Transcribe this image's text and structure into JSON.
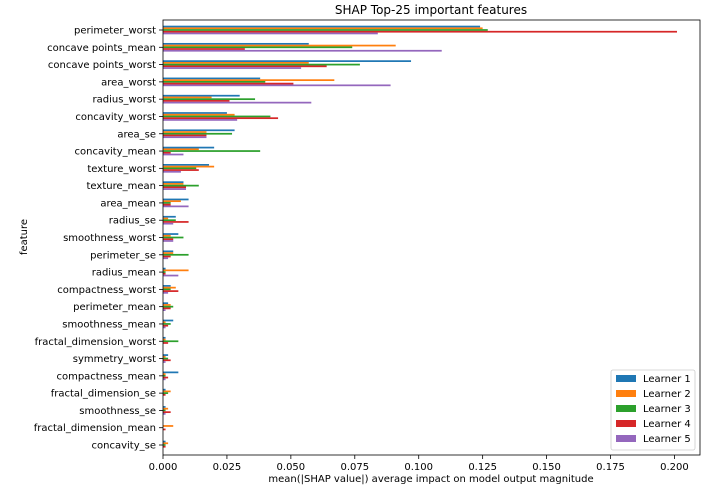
{
  "chart_data": {
    "type": "bar",
    "orientation": "horizontal",
    "title": "SHAP Top-25 important features",
    "xlabel": "mean(|SHAP value|) average impact on model output magnitude",
    "ylabel": "feature",
    "xlim": [
      0,
      0.21
    ],
    "xticks": [
      "0.000",
      "0.025",
      "0.050",
      "0.075",
      "0.100",
      "0.125",
      "0.150",
      "0.175",
      "0.200"
    ],
    "legend_position": "bottom-right",
    "grid": false,
    "categories": [
      "perimeter_worst",
      "concave points_mean",
      "concave points_worst",
      "area_worst",
      "radius_worst",
      "concavity_worst",
      "area_se",
      "concavity_mean",
      "texture_worst",
      "texture_mean",
      "area_mean",
      "radius_se",
      "smoothness_worst",
      "perimeter_se",
      "radius_mean",
      "compactness_worst",
      "perimeter_mean",
      "smoothness_mean",
      "fractal_dimension_worst",
      "symmetry_worst",
      "compactness_mean",
      "fractal_dimension_se",
      "smoothness_se",
      "fractal_dimension_mean",
      "concavity_se"
    ],
    "series": [
      {
        "name": "Learner 1",
        "color": "#1f77b4",
        "values": [
          0.124,
          0.057,
          0.097,
          0.038,
          0.03,
          0.025,
          0.028,
          0.02,
          0.018,
          0.008,
          0.01,
          0.005,
          0.006,
          0.004,
          0.001,
          0.003,
          0.002,
          0.004,
          0.001,
          0.002,
          0.006,
          0.001,
          0.001,
          0.0,
          0.001
        ]
      },
      {
        "name": "Learner 2",
        "color": "#ff7f0e",
        "values": [
          0.125,
          0.091,
          0.057,
          0.067,
          0.019,
          0.028,
          0.017,
          0.014,
          0.02,
          0.008,
          0.007,
          0.002,
          0.003,
          0.004,
          0.01,
          0.005,
          0.003,
          0.001,
          0.001,
          0.001,
          0.001,
          0.003,
          0.002,
          0.004,
          0.002
        ]
      },
      {
        "name": "Learner 3",
        "color": "#2ca02c",
        "values": [
          0.127,
          0.074,
          0.077,
          0.04,
          0.036,
          0.042,
          0.027,
          0.038,
          0.013,
          0.014,
          0.003,
          0.005,
          0.008,
          0.01,
          0.001,
          0.003,
          0.004,
          0.003,
          0.006,
          0.002,
          0.001,
          0.002,
          0.001,
          0.0,
          0.001
        ]
      },
      {
        "name": "Learner 4",
        "color": "#d62728",
        "values": [
          0.201,
          0.032,
          0.064,
          0.051,
          0.026,
          0.045,
          0.017,
          0.003,
          0.014,
          0.009,
          0.003,
          0.01,
          0.004,
          0.003,
          0.001,
          0.006,
          0.003,
          0.002,
          0.002,
          0.003,
          0.002,
          0.001,
          0.003,
          0.001,
          0.001
        ]
      },
      {
        "name": "Learner 5",
        "color": "#9467bd",
        "values": [
          0.084,
          0.109,
          0.054,
          0.089,
          0.058,
          0.029,
          0.017,
          0.008,
          0.007,
          0.009,
          0.01,
          0.004,
          0.004,
          0.002,
          0.006,
          0.002,
          0.001,
          0.001,
          0.0,
          0.001,
          0.001,
          0.0,
          0.001,
          0.0,
          0.0
        ]
      }
    ]
  }
}
